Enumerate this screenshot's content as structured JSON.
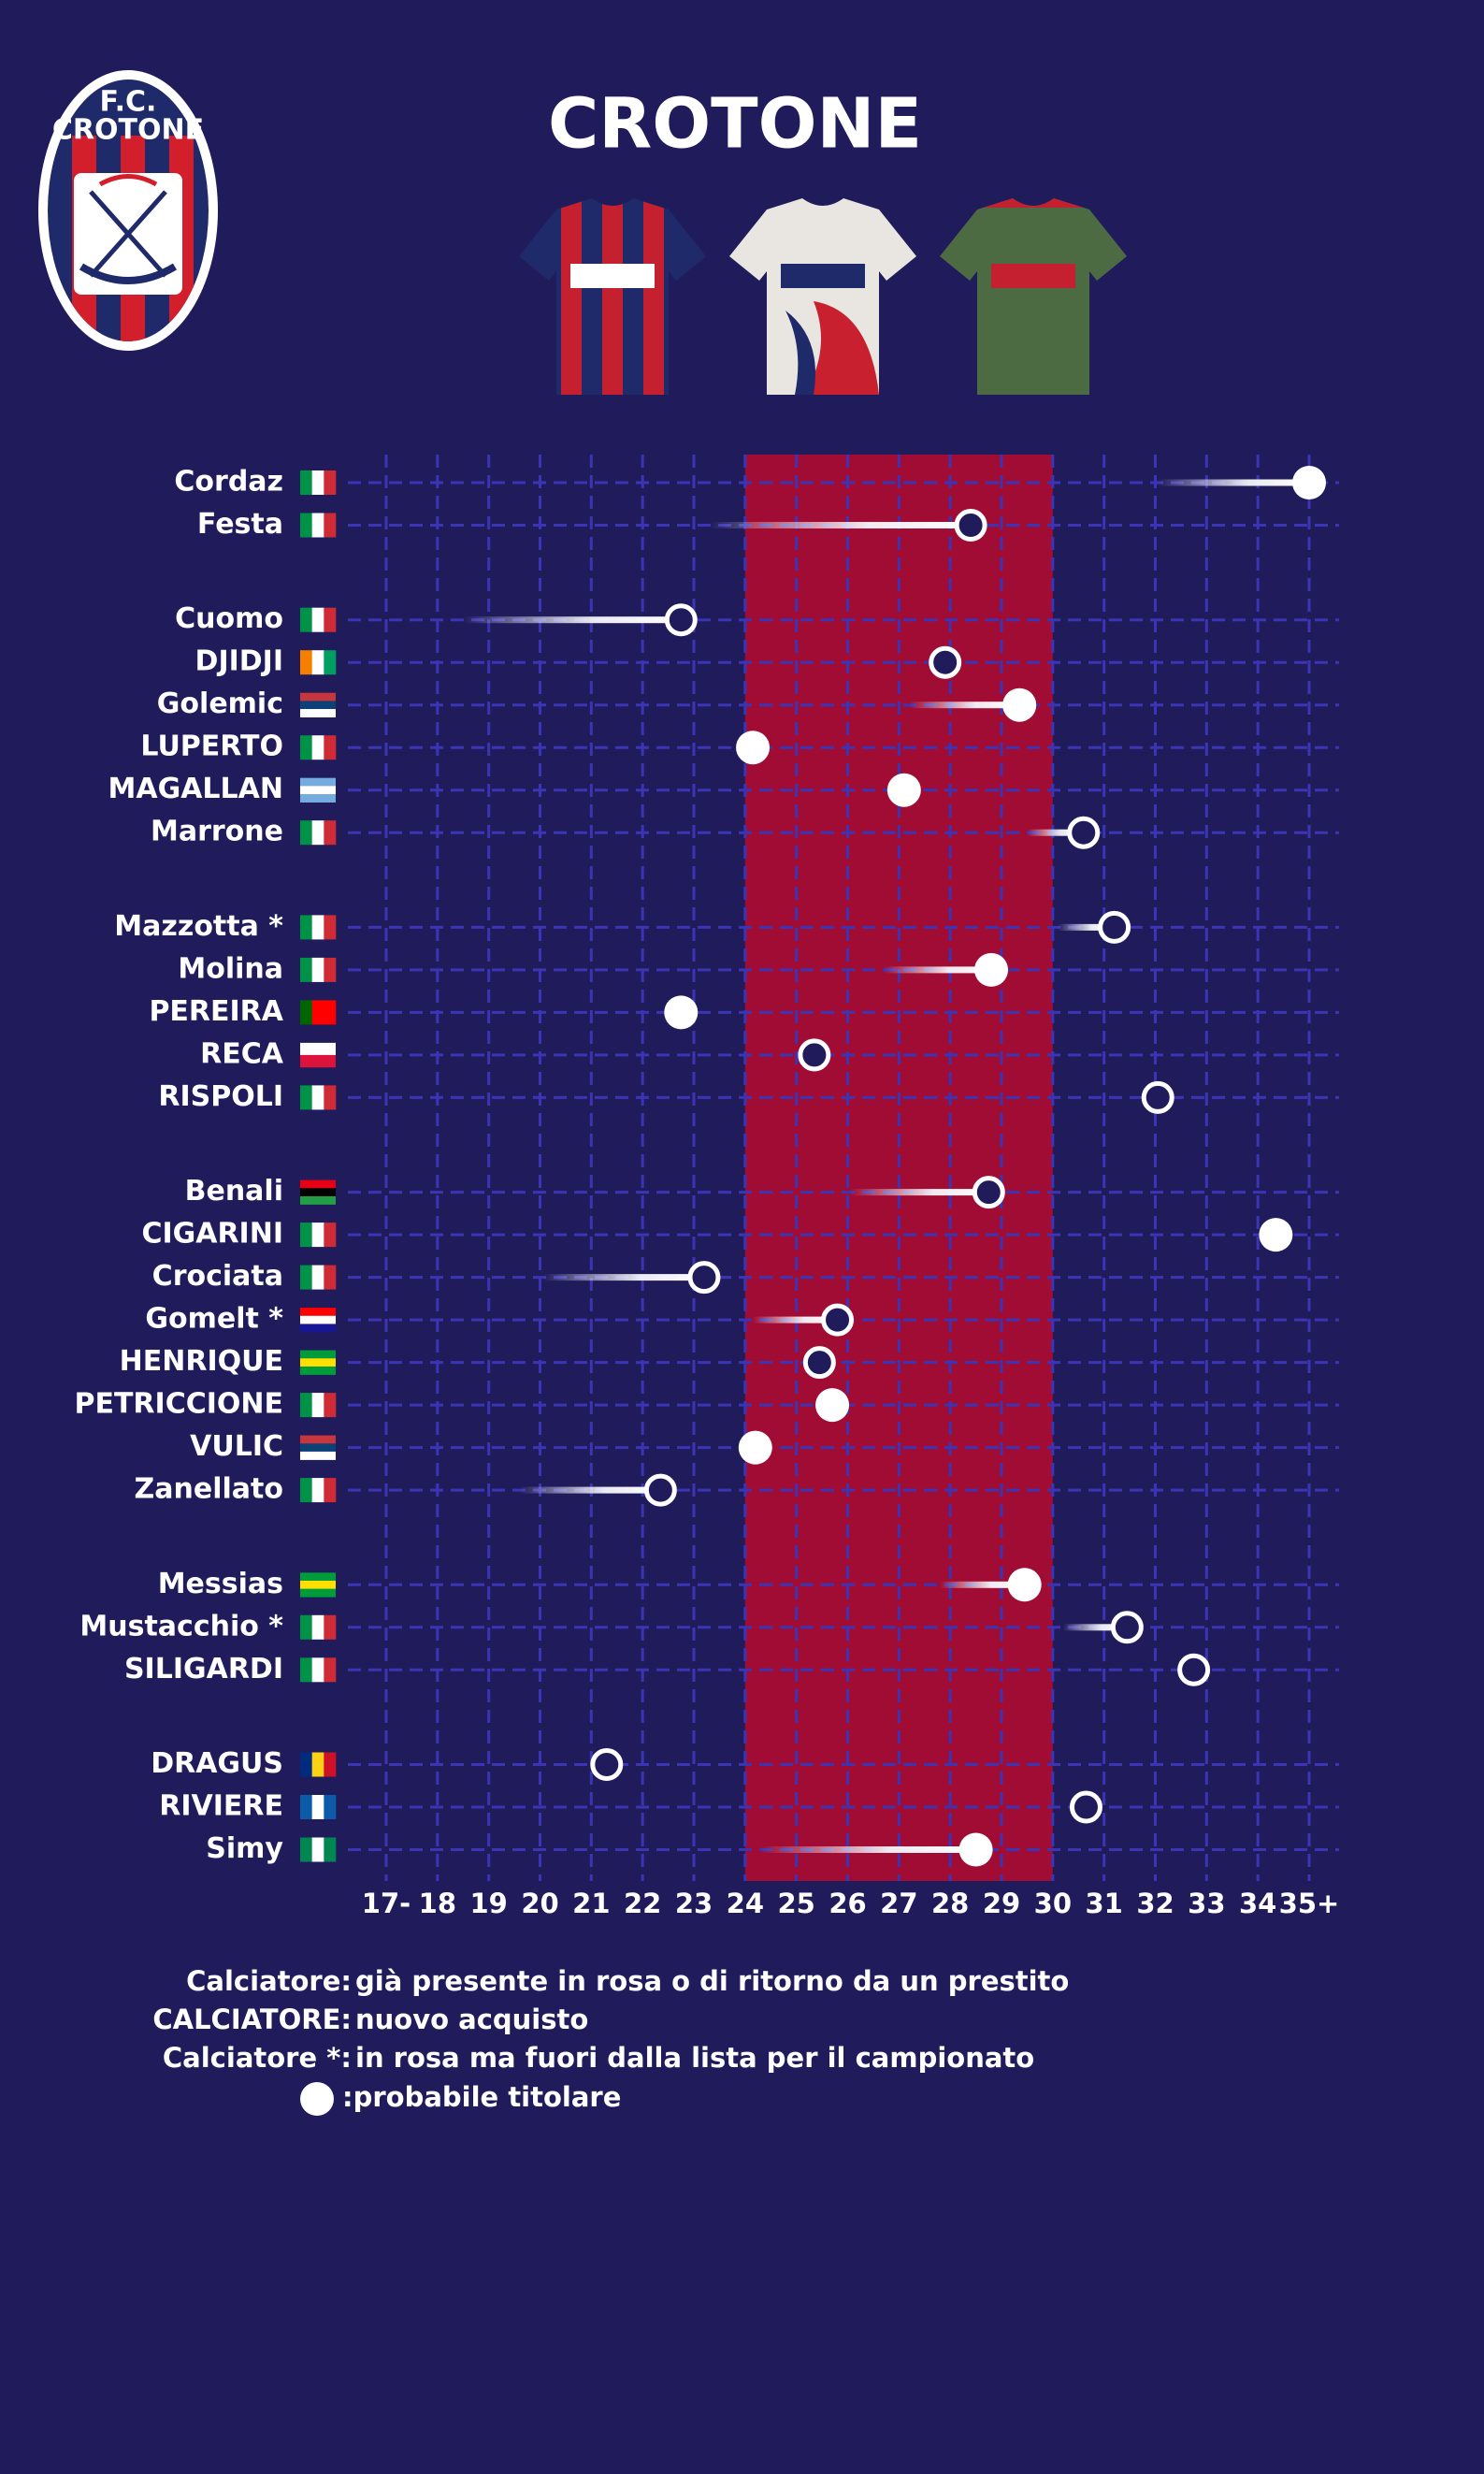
{
  "title": "CROTONE",
  "logo": {
    "line1": "F.C.",
    "line2": "CROTONE"
  },
  "chart_data": {
    "type": "lollipop",
    "xlim": [
      17,
      35
    ],
    "xticks": [
      {
        "value": 17,
        "label": "17-"
      },
      18,
      19,
      20,
      21,
      22,
      23,
      24,
      25,
      26,
      27,
      28,
      29,
      30,
      31,
      32,
      33,
      34,
      {
        "value": 35,
        "label": "35+"
      }
    ],
    "highlight": [
      24,
      30
    ],
    "highlight_color": "#a10c34",
    "grid": true,
    "groups": [
      {
        "players": [
          {
            "name": "Cordaz",
            "age": 35.0,
            "from": 32.05,
            "starter": true,
            "flag": [
              "#009246",
              "#ffffff",
              "#ce2b37"
            ],
            "flag_dir": "v"
          },
          {
            "name": "Festa",
            "age": 28.4,
            "from": 23.3,
            "starter": false,
            "flag": [
              "#009246",
              "#ffffff",
              "#ce2b37"
            ],
            "flag_dir": "v"
          }
        ]
      },
      {
        "players": [
          {
            "name": "Cuomo",
            "age": 22.75,
            "from": 18.5,
            "starter": false,
            "flag": [
              "#009246",
              "#ffffff",
              "#ce2b37"
            ],
            "flag_dir": "v"
          },
          {
            "name": "DJIDJI",
            "age": 27.9,
            "starter": false,
            "flag": [
              "#f77f00",
              "#ffffff",
              "#009e60"
            ],
            "flag_dir": "v"
          },
          {
            "name": "Golemic",
            "age": 29.35,
            "from": 27.2,
            "starter": true,
            "flag": [
              "#c6363c",
              "#0c4076",
              "#ffffff"
            ],
            "flag_dir": "h"
          },
          {
            "name": "LUPERTO",
            "age": 24.15,
            "starter": true,
            "flag": [
              "#009246",
              "#ffffff",
              "#ce2b37"
            ],
            "flag_dir": "v"
          },
          {
            "name": "MAGALLAN",
            "age": 27.1,
            "starter": true,
            "flag": [
              "#74acdf",
              "#ffffff",
              "#74acdf"
            ],
            "flag_dir": "h"
          },
          {
            "name": "Marrone",
            "age": 30.6,
            "from": 29.5,
            "starter": false,
            "flag": [
              "#009246",
              "#ffffff",
              "#ce2b37"
            ],
            "flag_dir": "v"
          }
        ]
      },
      {
        "players": [
          {
            "name": "Mazzotta *",
            "age": 31.2,
            "from": 30.1,
            "starter": false,
            "flag": [
              "#009246",
              "#ffffff",
              "#ce2b37"
            ],
            "flag_dir": "v"
          },
          {
            "name": "Molina",
            "age": 28.8,
            "from": 26.7,
            "starter": true,
            "flag": [
              "#009246",
              "#ffffff",
              "#ce2b37"
            ],
            "flag_dir": "v"
          },
          {
            "name": "PEREIRA",
            "age": 22.75,
            "starter": true,
            "flag": [
              "#006600",
              "#ff0000",
              "#ff0000"
            ],
            "flag_dir": "v"
          },
          {
            "name": "RECA",
            "age": 25.35,
            "starter": false,
            "flag": [
              "#ffffff",
              "#dc143c"
            ],
            "flag_dir": "h"
          },
          {
            "name": "RISPOLI",
            "age": 32.05,
            "starter": false,
            "flag": [
              "#009246",
              "#ffffff",
              "#ce2b37"
            ],
            "flag_dir": "v"
          }
        ]
      },
      {
        "players": [
          {
            "name": "Benali",
            "age": 28.75,
            "from": 26.05,
            "starter": false,
            "flag": [
              "#e70013",
              "#000000",
              "#239e46"
            ],
            "flag_dir": "h"
          },
          {
            "name": "CIGARINI",
            "age": 34.35,
            "starter": true,
            "flag": [
              "#009246",
              "#ffffff",
              "#ce2b37"
            ],
            "flag_dir": "v"
          },
          {
            "name": "Crociata",
            "age": 23.2,
            "from": 20.05,
            "starter": false,
            "flag": [
              "#009246",
              "#ffffff",
              "#ce2b37"
            ],
            "flag_dir": "v"
          },
          {
            "name": "Gomelt *",
            "age": 25.8,
            "from": 24.15,
            "starter": false,
            "flag": [
              "#ff0000",
              "#ffffff",
              "#171796"
            ],
            "flag_dir": "h"
          },
          {
            "name": "HENRIQUE",
            "age": 25.45,
            "starter": false,
            "flag": [
              "#009c3b",
              "#ffdf00",
              "#009c3b"
            ],
            "flag_dir": "h"
          },
          {
            "name": "PETRICCIONE",
            "age": 25.7,
            "starter": true,
            "flag": [
              "#009246",
              "#ffffff",
              "#ce2b37"
            ],
            "flag_dir": "v"
          },
          {
            "name": "VULIC",
            "age": 24.2,
            "starter": true,
            "flag": [
              "#c6363c",
              "#0c4076",
              "#ffffff"
            ],
            "flag_dir": "h"
          },
          {
            "name": "Zanellato",
            "age": 22.35,
            "from": 19.6,
            "starter": false,
            "flag": [
              "#009246",
              "#ffffff",
              "#ce2b37"
            ],
            "flag_dir": "v"
          }
        ]
      },
      {
        "players": [
          {
            "name": "Messias",
            "age": 29.45,
            "from": 27.8,
            "starter": true,
            "flag": [
              "#009c3b",
              "#ffdf00",
              "#009c3b"
            ],
            "flag_dir": "h"
          },
          {
            "name": "Mustacchio *",
            "age": 31.45,
            "from": 30.2,
            "starter": false,
            "flag": [
              "#009246",
              "#ffffff",
              "#ce2b37"
            ],
            "flag_dir": "v"
          },
          {
            "name": "SILIGARDI",
            "age": 32.75,
            "starter": false,
            "flag": [
              "#009246",
              "#ffffff",
              "#ce2b37"
            ],
            "flag_dir": "v"
          }
        ]
      },
      {
        "players": [
          {
            "name": "DRAGUS",
            "age": 21.3,
            "starter": false,
            "flag": [
              "#002b7f",
              "#fcd116",
              "#ce1126"
            ],
            "flag_dir": "v"
          },
          {
            "name": "RIVIERE",
            "age": 30.65,
            "starter": false,
            "flag": [
              "#0c5ba8",
              "#ffffff",
              "#0c5ba8"
            ],
            "flag_dir": "v"
          },
          {
            "name": "Simy",
            "age": 28.5,
            "from": 24.3,
            "starter": true,
            "flag": [
              "#008751",
              "#ffffff",
              "#008751"
            ],
            "flag_dir": "v"
          }
        ]
      }
    ]
  },
  "legend": [
    {
      "key": "Calciatore:",
      "text": "già presente in rosa o di ritorno da un prestito"
    },
    {
      "key": "CALCIATORE:",
      "text": "nuovo acquisto"
    },
    {
      "key": "Calciatore *:",
      "text": "in rosa ma fuori dalla lista per il campionato"
    },
    {
      "text": ":probabile titolare"
    }
  ]
}
